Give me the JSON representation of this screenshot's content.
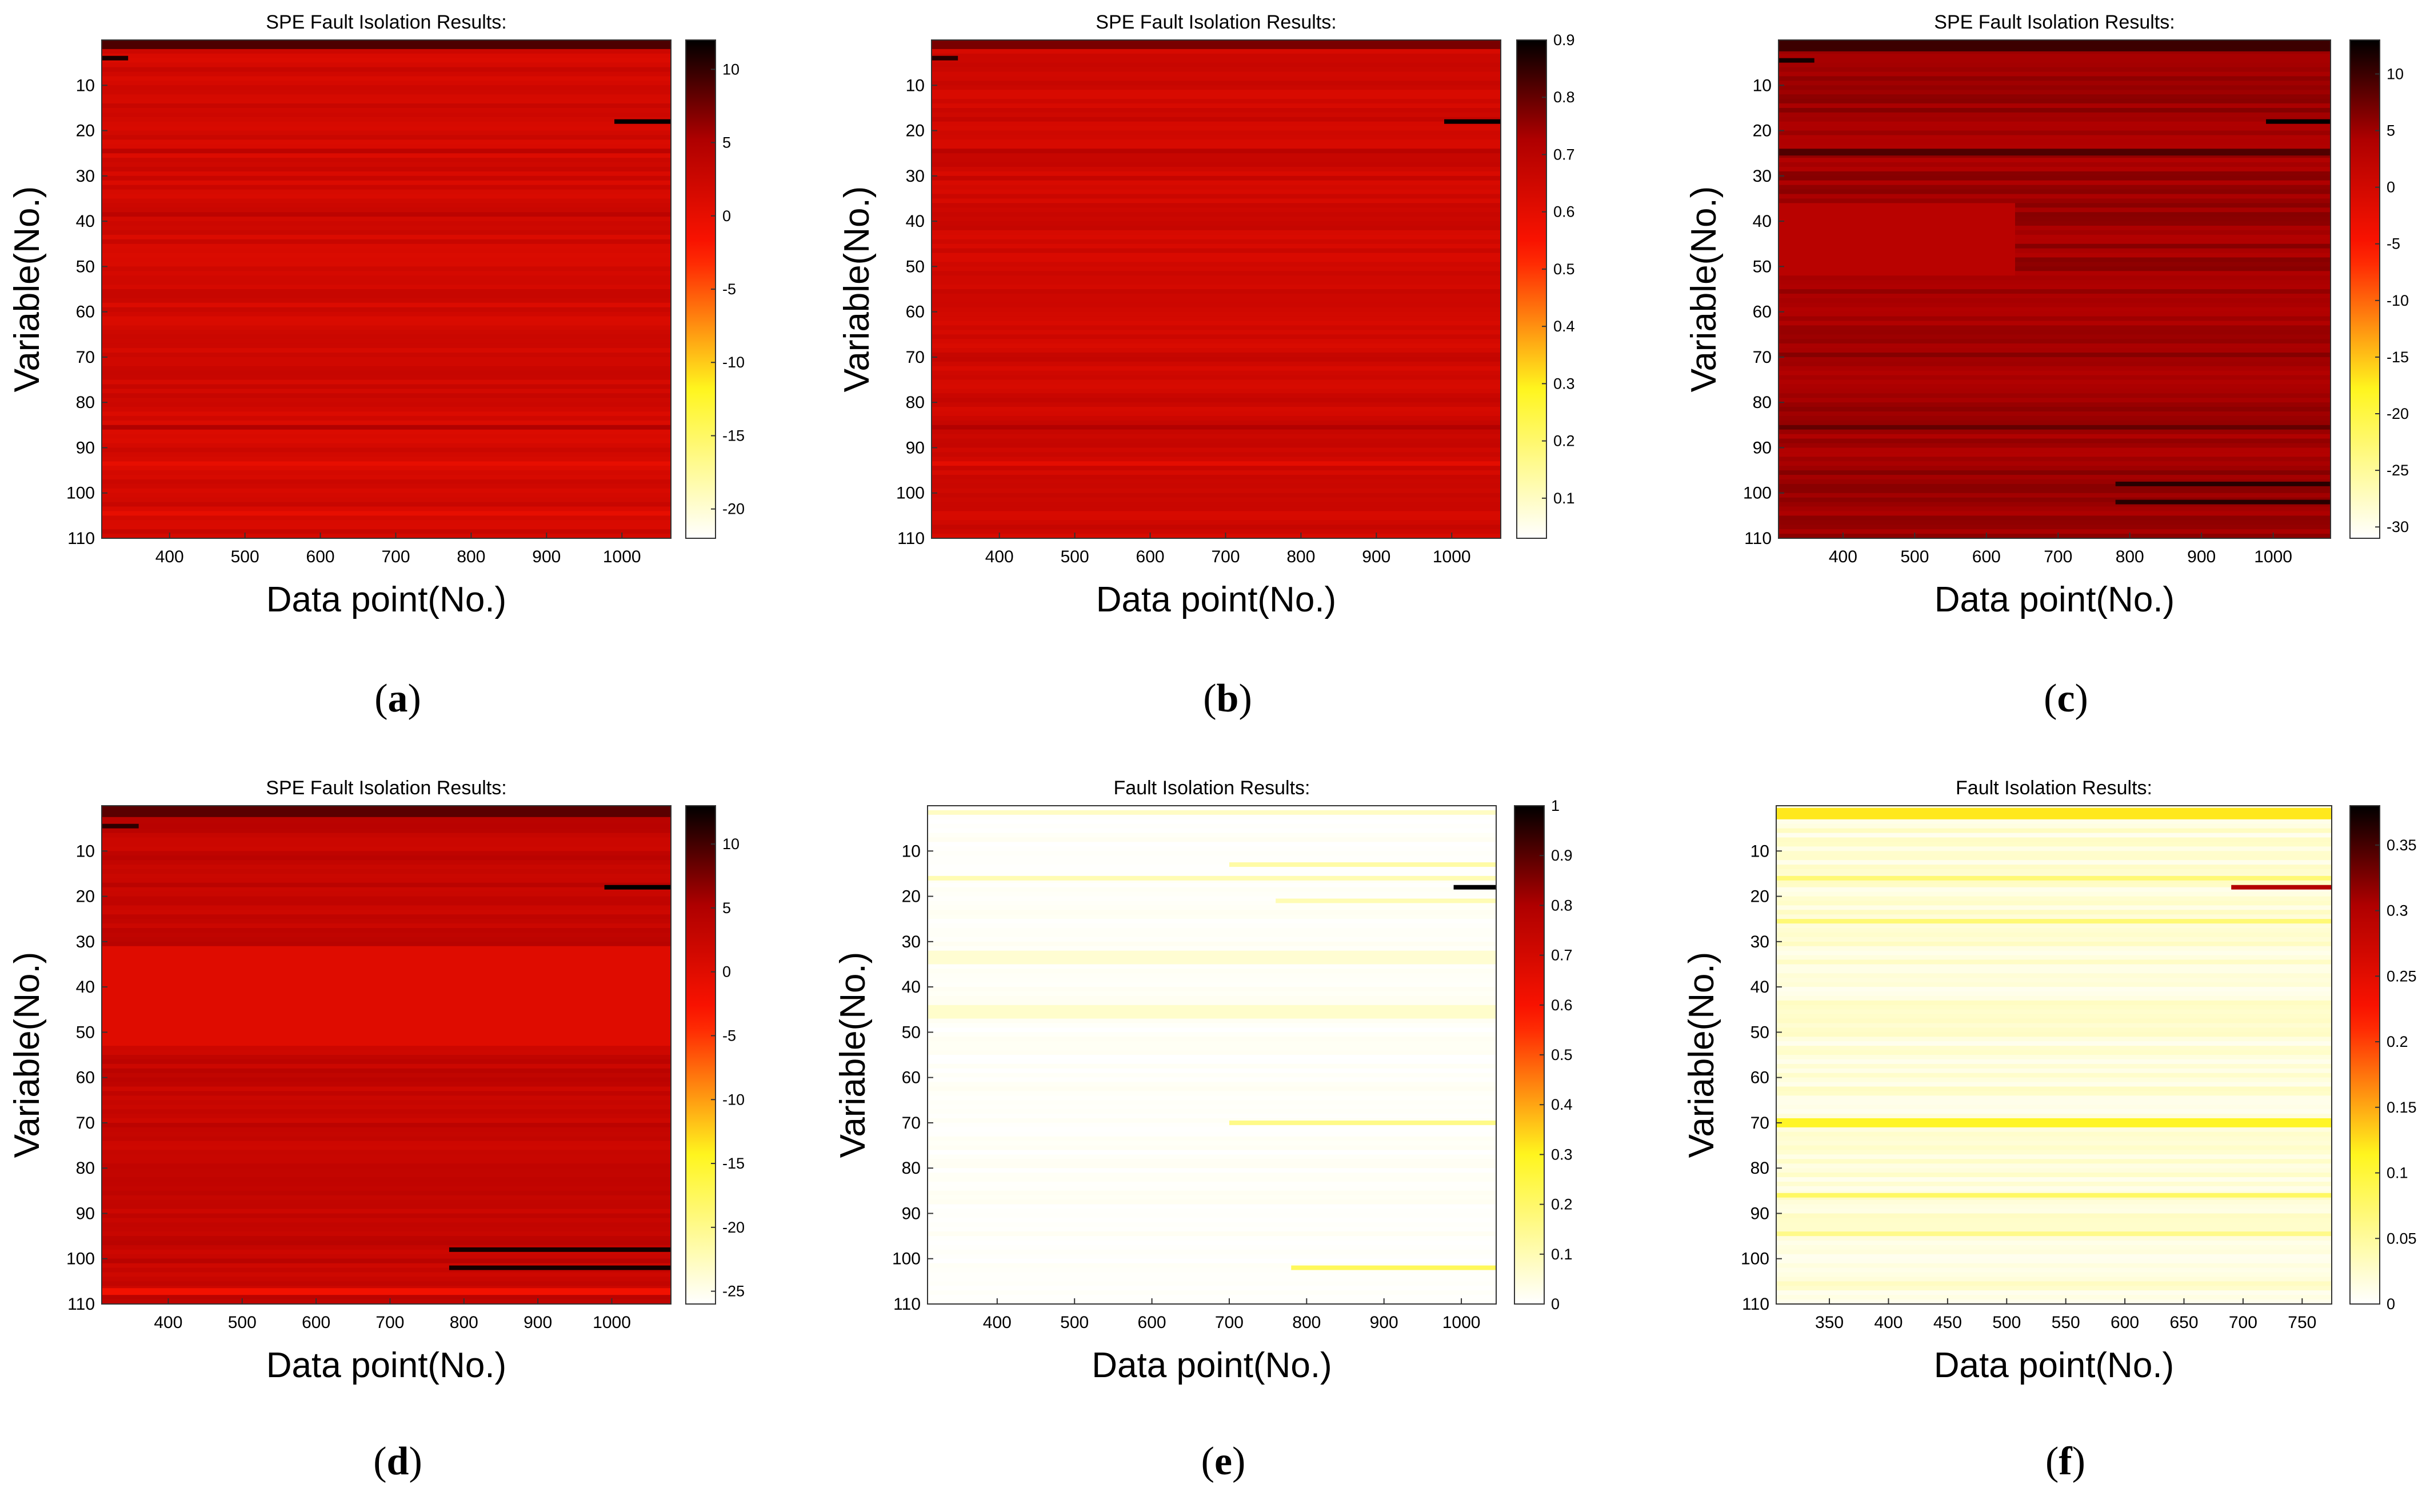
{
  "figure": {
    "description_labels": "Six heat-map panels of fault isolation results",
    "panels": [
      "a",
      "b",
      "c",
      "d",
      "e",
      "f"
    ]
  },
  "chart_data": [
    {
      "id": "a",
      "panel_label": "a",
      "type": "heatmap",
      "title": "SPE Fault Isolation Results:",
      "xlabel": "Data point(No.)",
      "ylabel": "Variable(No.)",
      "xlim": [
        310,
        1065
      ],
      "xticks": [
        400,
        500,
        600,
        700,
        800,
        900,
        1000
      ],
      "ylim": [
        0,
        110
      ],
      "yticks": [
        10,
        20,
        30,
        40,
        50,
        60,
        70,
        80,
        90,
        100,
        110
      ],
      "colormap": "hot-reversed",
      "clim": [
        -22,
        12
      ],
      "cticks": [
        10,
        5,
        0,
        -5,
        -10,
        -15,
        -20
      ],
      "cell_value_base": 2,
      "bands": [
        {
          "v0": 0,
          "v1": 2,
          "x0": 310,
          "x1": 1065,
          "value": 9
        },
        {
          "v0": 3.5,
          "v1": 4.5,
          "x0": 310,
          "x1": 345,
          "value": 11
        },
        {
          "v0": 17.5,
          "v1": 18.5,
          "x0": 990,
          "x1": 1065,
          "value": 12
        },
        {
          "v0": 24,
          "v1": 25,
          "x0": 310,
          "x1": 1065,
          "value": 4
        },
        {
          "v0": 38,
          "v1": 39,
          "x0": 310,
          "x1": 1065,
          "value": 4
        },
        {
          "v0": 85,
          "v1": 86,
          "x0": 310,
          "x1": 1065,
          "value": 5
        },
        {
          "v0": 93,
          "v1": 94,
          "x0": 310,
          "x1": 1065,
          "value": 0
        },
        {
          "v0": 104,
          "v1": 105,
          "x0": 310,
          "x1": 1065,
          "value": 0
        }
      ]
    },
    {
      "id": "b",
      "panel_label": "b",
      "type": "heatmap",
      "title": "SPE Fault Isolation Results:",
      "xlabel": "Data point(No.)",
      "ylabel": "Variable(No.)",
      "xlim": [
        310,
        1065
      ],
      "xticks": [
        400,
        500,
        600,
        700,
        800,
        900,
        1000
      ],
      "ylim": [
        0,
        110
      ],
      "yticks": [
        10,
        20,
        30,
        40,
        50,
        60,
        70,
        80,
        90,
        100,
        110
      ],
      "colormap": "hot-reversed",
      "clim": [
        0.03,
        0.9
      ],
      "cticks": [
        0.9,
        0.8,
        0.7,
        0.6,
        0.5,
        0.4,
        0.3,
        0.2,
        0.1
      ],
      "cell_value_base": 0.65,
      "bands": [
        {
          "v0": 0,
          "v1": 2,
          "x0": 310,
          "x1": 1065,
          "value": 0.78
        },
        {
          "v0": 3.5,
          "v1": 4.5,
          "x0": 310,
          "x1": 345,
          "value": 0.86
        },
        {
          "v0": 17.5,
          "v1": 18.5,
          "x0": 990,
          "x1": 1065,
          "value": 0.9
        },
        {
          "v0": 24,
          "v1": 25,
          "x0": 310,
          "x1": 1065,
          "value": 0.7
        },
        {
          "v0": 85,
          "v1": 86,
          "x0": 310,
          "x1": 1065,
          "value": 0.72
        },
        {
          "v0": 93,
          "v1": 94,
          "x0": 310,
          "x1": 1065,
          "value": 0.6
        }
      ]
    },
    {
      "id": "c",
      "panel_label": "c",
      "type": "heatmap",
      "title": "SPE Fault Isolation Results:",
      "xlabel": "Data point(No.)",
      "ylabel": "Variable(No.)",
      "xlim": [
        310,
        1080
      ],
      "xticks": [
        400,
        500,
        600,
        700,
        800,
        900,
        1000
      ],
      "ylim": [
        0,
        110
      ],
      "yticks": [
        10,
        20,
        30,
        40,
        50,
        60,
        70,
        80,
        90,
        100,
        110
      ],
      "colormap": "hot-reversed",
      "clim": [
        -31,
        13
      ],
      "cticks": [
        10,
        5,
        0,
        -5,
        -10,
        -15,
        -20,
        -25,
        -30
      ],
      "cell_value_base": 5,
      "bands": [
        {
          "v0": 0,
          "v1": 2.5,
          "x0": 310,
          "x1": 1080,
          "value": 10
        },
        {
          "v0": 4,
          "v1": 5,
          "x0": 310,
          "x1": 360,
          "value": 12
        },
        {
          "v0": 17.5,
          "v1": 18.5,
          "x0": 990,
          "x1": 1080,
          "value": 13
        },
        {
          "v0": 24,
          "v1": 25.5,
          "x0": 310,
          "x1": 1080,
          "value": 9
        },
        {
          "v0": 36,
          "v1": 52,
          "x0": 310,
          "x1": 640,
          "value": 3
        },
        {
          "v0": 85,
          "v1": 86,
          "x0": 310,
          "x1": 1080,
          "value": 8
        },
        {
          "v0": 97.5,
          "v1": 98.5,
          "x0": 780,
          "x1": 1080,
          "value": 11
        },
        {
          "v0": 101.5,
          "v1": 102.5,
          "x0": 780,
          "x1": 1080,
          "value": 11
        }
      ]
    },
    {
      "id": "d",
      "panel_label": "d",
      "type": "heatmap",
      "title": "SPE Fault Isolation Results:",
      "xlabel": "Data point(No.)",
      "ylabel": "Variable(No.)",
      "xlim": [
        310,
        1080
      ],
      "xticks": [
        400,
        500,
        600,
        700,
        800,
        900,
        1000
      ],
      "ylim": [
        0,
        110
      ],
      "yticks": [
        10,
        20,
        30,
        40,
        50,
        60,
        70,
        80,
        90,
        100,
        110
      ],
      "colormap": "hot-reversed",
      "clim": [
        -26,
        13
      ],
      "cticks": [
        10,
        5,
        0,
        -5,
        -10,
        -15,
        -20,
        -25
      ],
      "cell_value_base": 3,
      "bands": [
        {
          "v0": 0,
          "v1": 2.5,
          "x0": 310,
          "x1": 1080,
          "value": 9
        },
        {
          "v0": 4,
          "v1": 5,
          "x0": 310,
          "x1": 360,
          "value": 11
        },
        {
          "v0": 17.5,
          "v1": 18.5,
          "x0": 990,
          "x1": 1080,
          "value": 13
        },
        {
          "v0": 31,
          "v1": 53,
          "x0": 310,
          "x1": 1080,
          "value": 0
        },
        {
          "v0": 97.5,
          "v1": 98.5,
          "x0": 780,
          "x1": 1080,
          "value": 12
        },
        {
          "v0": 101.5,
          "v1": 102.5,
          "x0": 780,
          "x1": 1080,
          "value": 12
        },
        {
          "v0": 106.5,
          "v1": 108,
          "x0": 310,
          "x1": 1080,
          "value": -2
        }
      ]
    },
    {
      "id": "e",
      "panel_label": "e",
      "type": "heatmap",
      "title": "Fault Isolation Results:",
      "xlabel": "Data point(No.)",
      "ylabel": "Variable(No.)",
      "xlim": [
        310,
        1045
      ],
      "xticks": [
        400,
        500,
        600,
        700,
        800,
        900,
        1000
      ],
      "ylim": [
        0,
        110
      ],
      "yticks": [
        10,
        20,
        30,
        40,
        50,
        60,
        70,
        80,
        90,
        100,
        110
      ],
      "colormap": "hot-reversed",
      "clim": [
        0,
        1
      ],
      "cticks": [
        1,
        0.9,
        0.8,
        0.7,
        0.6,
        0.5,
        0.4,
        0.3,
        0.2,
        0.1,
        0
      ],
      "cell_value_base": 0,
      "bands": [
        {
          "v0": 1,
          "v1": 2,
          "x0": 310,
          "x1": 1045,
          "value": 0.08
        },
        {
          "v0": 17.5,
          "v1": 18.5,
          "x0": 990,
          "x1": 1045,
          "value": 1.0
        },
        {
          "v0": 12.5,
          "v1": 13.5,
          "x0": 700,
          "x1": 1045,
          "value": 0.12
        },
        {
          "v0": 15.5,
          "v1": 16.5,
          "x0": 310,
          "x1": 1045,
          "value": 0.1
        },
        {
          "v0": 20.5,
          "v1": 21.5,
          "x0": 760,
          "x1": 1045,
          "value": 0.1
        },
        {
          "v0": 32,
          "v1": 35,
          "x0": 310,
          "x1": 1045,
          "value": 0.06
        },
        {
          "v0": 44,
          "v1": 47,
          "x0": 310,
          "x1": 1045,
          "value": 0.07
        },
        {
          "v0": 69.5,
          "v1": 70.5,
          "x0": 700,
          "x1": 1045,
          "value": 0.16
        },
        {
          "v0": 101.5,
          "v1": 102.5,
          "x0": 780,
          "x1": 1045,
          "value": 0.22
        }
      ]
    },
    {
      "id": "f",
      "panel_label": "f",
      "type": "heatmap",
      "title": "Fault Isolation Results:",
      "xlabel": "Data point(No.)",
      "ylabel": "Variable(No.)",
      "xlim": [
        305,
        775
      ],
      "xticks": [
        350,
        400,
        450,
        500,
        550,
        600,
        650,
        700,
        750
      ],
      "ylim": [
        0,
        110
      ],
      "yticks": [
        10,
        20,
        30,
        40,
        50,
        60,
        70,
        80,
        90,
        100,
        110
      ],
      "colormap": "hot-reversed",
      "clim": [
        0,
        0.38
      ],
      "cticks": [
        0.35,
        0.3,
        0.25,
        0.2,
        0.15,
        0.1,
        0.05,
        0
      ],
      "cell_value_base": 0.02,
      "bands": [
        {
          "v0": 0.5,
          "v1": 3,
          "x0": 305,
          "x1": 775,
          "value": 0.12
        },
        {
          "v0": 17.5,
          "v1": 18.5,
          "x0": 690,
          "x1": 775,
          "value": 0.3
        },
        {
          "v0": 15.5,
          "v1": 16.5,
          "x0": 305,
          "x1": 775,
          "value": 0.07
        },
        {
          "v0": 25,
          "v1": 26,
          "x0": 305,
          "x1": 775,
          "value": 0.07
        },
        {
          "v0": 69,
          "v1": 71,
          "x0": 305,
          "x1": 775,
          "value": 0.11
        },
        {
          "v0": 85.5,
          "v1": 86.5,
          "x0": 305,
          "x1": 775,
          "value": 0.08
        },
        {
          "v0": 94,
          "v1": 95,
          "x0": 305,
          "x1": 775,
          "value": 0.06
        }
      ]
    }
  ]
}
